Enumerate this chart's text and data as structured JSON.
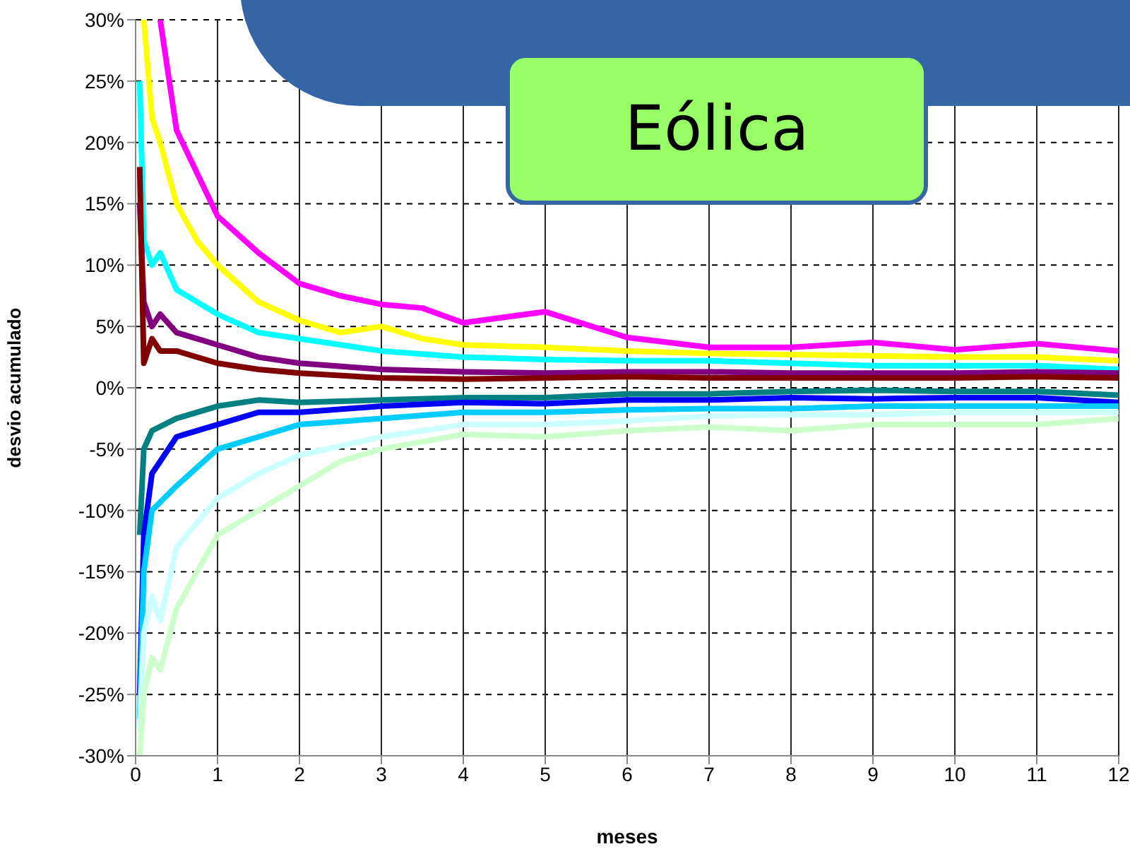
{
  "chart_data": {
    "type": "line",
    "title": "Eólica",
    "xlabel": "meses",
    "ylabel": "desvio acumulado",
    "xlim": [
      0,
      12
    ],
    "xticks": [
      0,
      1,
      2,
      3,
      4,
      5,
      6,
      7,
      8,
      9,
      10,
      11,
      12
    ],
    "ylim": [
      -30,
      30
    ],
    "yticks": [
      {
        "value": -30,
        "label": "-30%"
      },
      {
        "value": -25,
        "label": "-25%"
      },
      {
        "value": -20,
        "label": "-20%"
      },
      {
        "value": -15,
        "label": "-15%"
      },
      {
        "value": -10,
        "label": "-10%"
      },
      {
        "value": -5,
        "label": "-5%"
      },
      {
        "value": 0,
        "label": "0%"
      },
      {
        "value": 5,
        "label": "5%"
      },
      {
        "value": 10,
        "label": "10%"
      },
      {
        "value": 15,
        "label": "15%"
      },
      {
        "value": 20,
        "label": "20%"
      },
      {
        "value": 25,
        "label": "25%"
      },
      {
        "value": 30,
        "label": "30%"
      }
    ],
    "grid": true,
    "series": [
      {
        "color": "#ff00ff",
        "x": [
          0.3,
          0.5,
          1,
          1.5,
          2,
          2.5,
          3,
          3.5,
          4,
          5,
          6,
          7,
          8,
          9,
          10,
          11,
          12
        ],
        "values": [
          30,
          21,
          14,
          11,
          8.5,
          7.5,
          6.8,
          6.5,
          5.3,
          6.2,
          4.1,
          3.3,
          3.3,
          3.7,
          3.1,
          3.6,
          3
        ]
      },
      {
        "color": "#ffff00",
        "x": [
          0.1,
          0.2,
          0.3,
          0.5,
          0.75,
          1,
          1.5,
          2,
          2.5,
          3,
          3.5,
          4,
          5,
          6,
          7,
          8,
          9,
          10,
          11,
          12
        ],
        "values": [
          30,
          22,
          20,
          15,
          12,
          10,
          7,
          5.5,
          4.5,
          5,
          4,
          3.5,
          3.3,
          3,
          2.8,
          2.7,
          2.6,
          2.5,
          2.5,
          2.2
        ]
      },
      {
        "color": "#00ffff",
        "x": [
          0.05,
          0.1,
          0.2,
          0.3,
          0.5,
          1,
          1.5,
          2,
          3,
          4,
          5,
          6,
          7,
          8,
          9,
          10,
          11,
          12
        ],
        "values": [
          25,
          12,
          10,
          11,
          8,
          6,
          4.5,
          4,
          3,
          2.5,
          2.3,
          2.2,
          2.2,
          2,
          1.8,
          1.8,
          1.8,
          1.5
        ]
      },
      {
        "color": "#800080",
        "x": [
          0.05,
          0.1,
          0.2,
          0.3,
          0.5,
          1,
          1.5,
          2,
          3,
          4,
          5,
          6,
          7,
          8,
          9,
          10,
          11,
          12
        ],
        "values": [
          15,
          7,
          5,
          6,
          4.5,
          3.5,
          2.5,
          2,
          1.5,
          1.3,
          1.2,
          1.3,
          1.3,
          1.2,
          1.2,
          1.2,
          1.3,
          1.2
        ]
      },
      {
        "color": "#800000",
        "x": [
          0.05,
          0.1,
          0.2,
          0.3,
          0.5,
          1,
          1.5,
          2,
          3,
          4,
          5,
          6,
          7,
          8,
          9,
          10,
          11,
          12
        ],
        "values": [
          18,
          2,
          4,
          3,
          3,
          2,
          1.5,
          1.2,
          0.8,
          0.7,
          0.8,
          0.9,
          0.8,
          0.8,
          0.8,
          0.8,
          0.9,
          0.8
        ]
      },
      {
        "color": "#008080",
        "x": [
          0.05,
          0.1,
          0.2,
          0.5,
          1,
          1.5,
          2,
          3,
          4,
          5,
          6,
          7,
          8,
          9,
          10,
          11,
          12
        ],
        "values": [
          -12,
          -5,
          -3.5,
          -2.5,
          -1.5,
          -1,
          -1.2,
          -1,
          -0.8,
          -0.8,
          -0.5,
          -0.5,
          -0.3,
          -0.2,
          -0.3,
          -0.3,
          -0.6
        ]
      },
      {
        "color": "#0000ff",
        "x": [
          0.05,
          0.1,
          0.2,
          0.3,
          0.5,
          1,
          1.5,
          2,
          3,
          4,
          5,
          6,
          7,
          8,
          9,
          10,
          11,
          12
        ],
        "values": [
          -25,
          -12,
          -7,
          -6,
          -4,
          -3,
          -2,
          -2,
          -1.5,
          -1.2,
          -1.3,
          -1,
          -1,
          -0.8,
          -0.9,
          -0.8,
          -0.8,
          -1.2
        ]
      },
      {
        "color": "#00ccff",
        "x": [
          0.05,
          0.1,
          0.2,
          0.5,
          1,
          1.5,
          2,
          3,
          4,
          5,
          6,
          7,
          8,
          9,
          10,
          11,
          12
        ],
        "values": [
          -27,
          -15,
          -10,
          -8,
          -5,
          -4,
          -3,
          -2.5,
          -2,
          -2,
          -1.8,
          -1.7,
          -1.7,
          -1.5,
          -1.5,
          -1.5,
          -1.5
        ]
      },
      {
        "color": "#ccffff",
        "x": [
          0.05,
          0.1,
          0.2,
          0.3,
          0.5,
          1,
          1.5,
          2,
          3,
          4,
          5,
          6,
          7,
          8,
          9,
          10,
          11,
          12
        ],
        "values": [
          -28,
          -20,
          -17,
          -19,
          -13,
          -9,
          -7,
          -5.5,
          -4,
          -3,
          -3,
          -2.7,
          -2.3,
          -2.2,
          -2.2,
          -2,
          -2,
          -2
        ]
      },
      {
        "color": "#ccffcc",
        "x": [
          0.05,
          0.1,
          0.2,
          0.3,
          0.5,
          1,
          1.5,
          2,
          2.5,
          3,
          4,
          5,
          6,
          7,
          8,
          9,
          10,
          11,
          12
        ],
        "values": [
          -30,
          -25,
          -22,
          -23,
          -18,
          -12,
          -10,
          -8,
          -6,
          -5,
          -3.8,
          -4,
          -3.5,
          -3.2,
          -3.5,
          -3,
          -3,
          -3,
          -2.5
        ]
      }
    ]
  }
}
